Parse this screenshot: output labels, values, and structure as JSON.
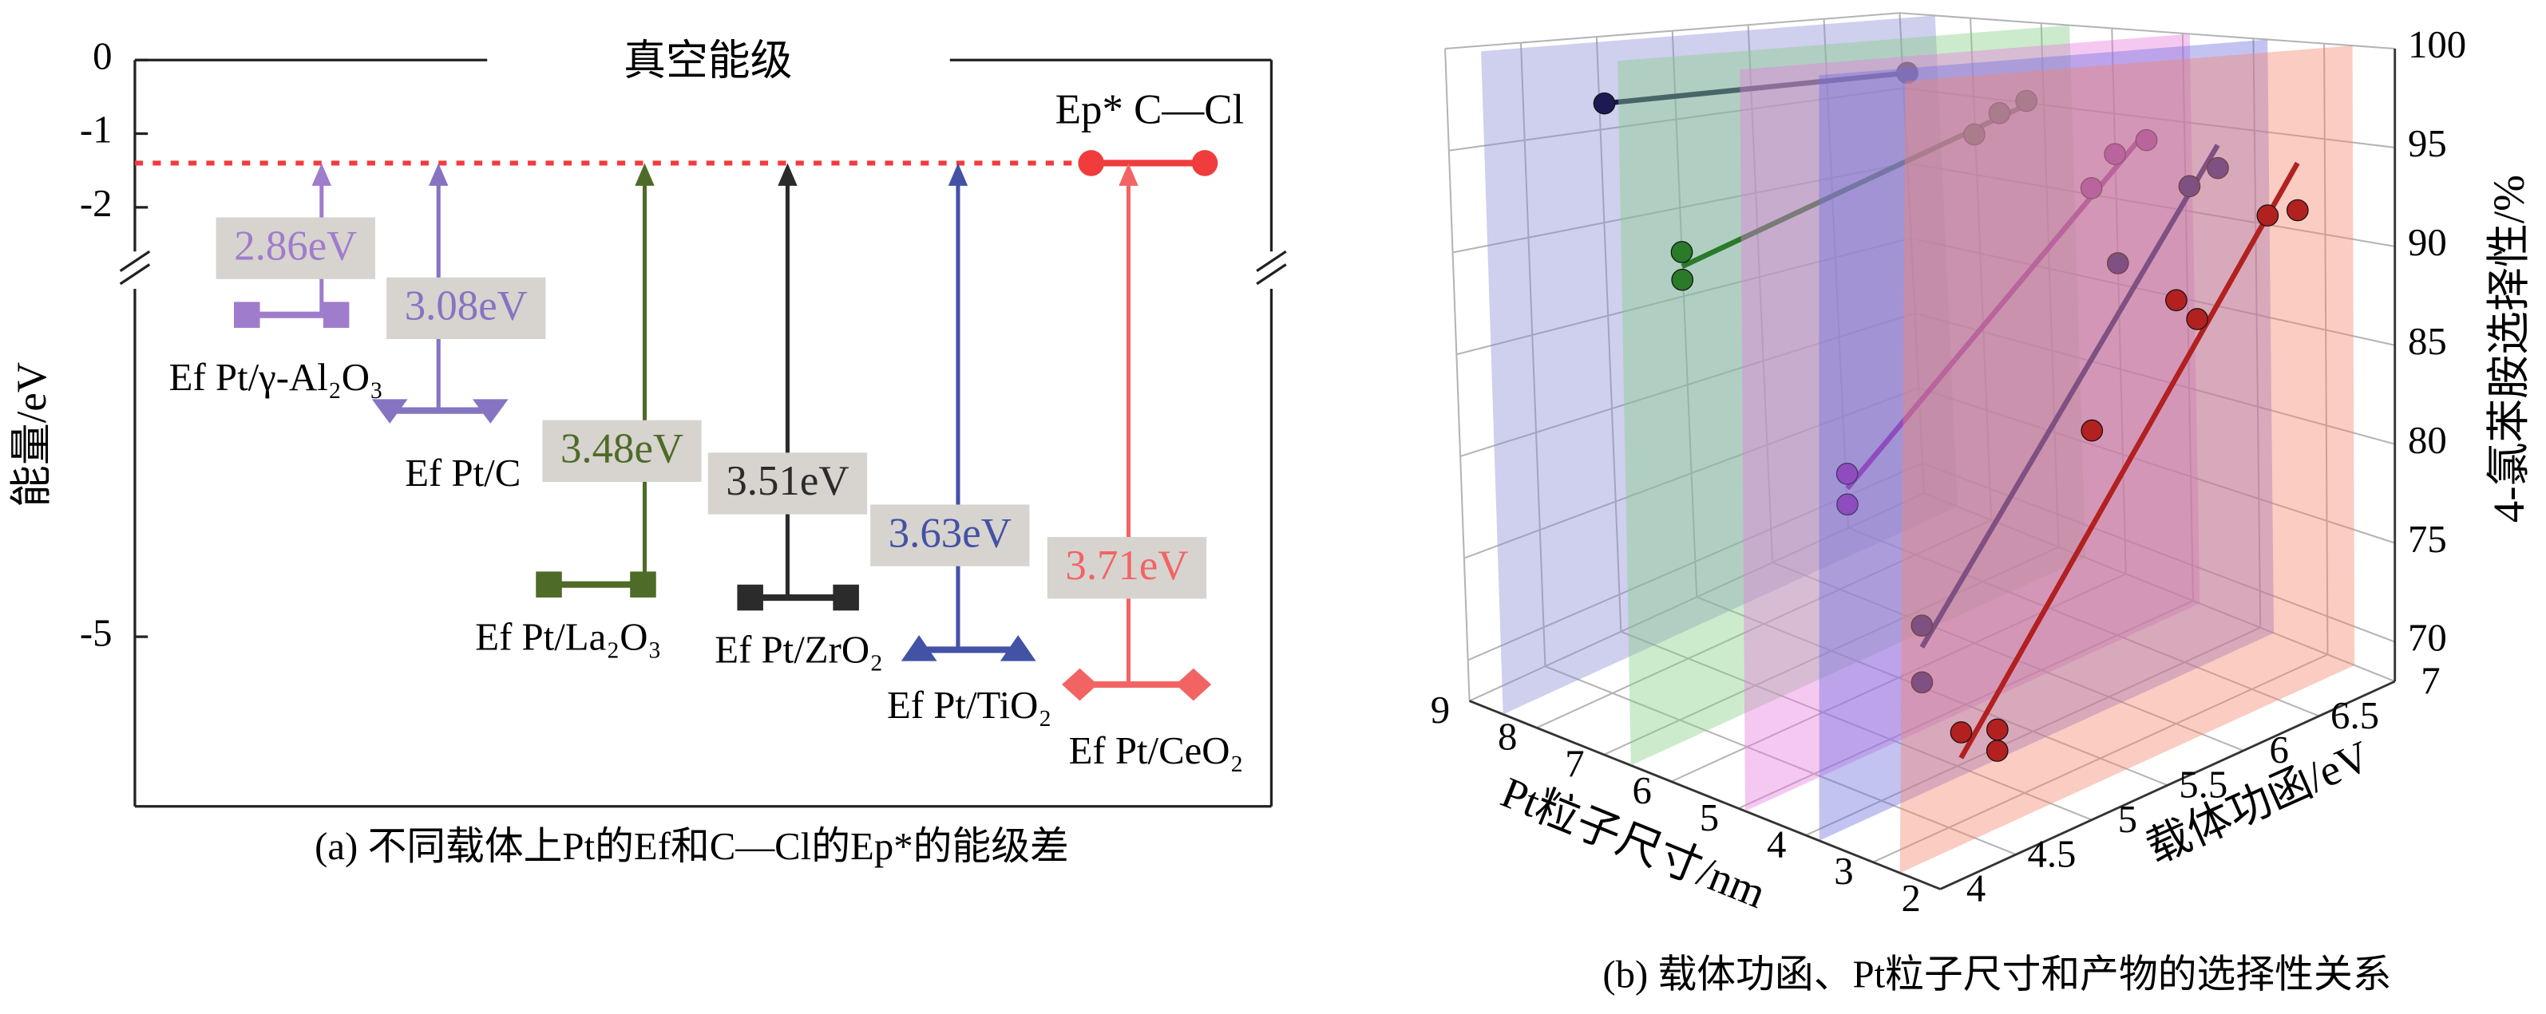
{
  "chart_data": [
    {
      "type": "energy-level",
      "ylabel": "能量/eV",
      "vacuum_label": "真空能级",
      "caption": "(a) 不同载体上Pt的Ef和C—Cl的Ep*的能级差",
      "ylim": [
        -5.39,
        0
      ],
      "ybreak": [
        -2.6,
        -4.2
      ],
      "yticks": [
        0,
        -1,
        -2,
        -5
      ],
      "ep_label": "Ep* C—Cl",
      "ep_level": -1.4,
      "ep_color": "#f03c3c",
      "categories": [
        "Ef Pt/γ-Al₂O₃",
        "Ef Pt/C",
        "Ef Pt/La₂O₃",
        "Ef Pt/ZrO₂",
        "Ef Pt/TiO₂",
        "Ef Pt/CeO₂"
      ],
      "values": [
        2.86,
        3.08,
        3.48,
        3.51,
        3.63,
        3.71
      ],
      "value_labels": [
        "2.86eV",
        "3.08eV",
        "3.48eV",
        "3.51eV",
        "3.63eV",
        "3.71eV"
      ],
      "colors": [
        "#a07ccc",
        "#8674c2",
        "#4e6b28",
        "#2b2b2b",
        "#4452a6",
        "#f26464"
      ],
      "markers": [
        "square",
        "triangle-down",
        "square",
        "square",
        "triangle-up",
        "diamond"
      ]
    },
    {
      "type": "scatter3d",
      "caption": "(b) 载体功函、Pt粒子尺寸和产物的选择性关系",
      "xlabel": "Pt粒子尺寸/nm",
      "ylabel": "载体功函/eV",
      "zlabel": "4-氯苯胺选择性/%",
      "xlim": [
        2,
        9
      ],
      "xticks": [
        9,
        8,
        7,
        6,
        5,
        4,
        3,
        2
      ],
      "ylim": [
        4,
        7
      ],
      "yticks": [
        4,
        4.5,
        5,
        5.5,
        6,
        6.5,
        7
      ],
      "zlim": [
        68,
        100
      ],
      "zticks": [
        70,
        75,
        80,
        85,
        90,
        95,
        100
      ],
      "grid": true,
      "series": [
        {
          "color": "#1c1a52",
          "plane_color": "#8c8cd6",
          "size": 8.5,
          "work_function": [
            4.8,
            6.8
          ],
          "values": [
            96.8,
            96.5
          ]
        },
        {
          "color": "#2a7a2a",
          "plane_color": "#86cf86",
          "size": 6.6,
          "work_function": [
            4.4,
            4.4,
            6.35,
            6.52,
            6.7
          ],
          "values": [
            90.8,
            89.5,
            94.3,
            95.3,
            95.8
          ]
        },
        {
          "color": "#a632a6",
          "plane_color": "#e67ce0",
          "size": 4.9,
          "work_function": [
            4.69,
            4.69,
            6.33,
            6.49,
            6.7
          ],
          "values": [
            81.2,
            79.8,
            92.3,
            93.9,
            94.4
          ]
        },
        {
          "color": "#2c2a92",
          "plane_color": "#7070e0",
          "size": 3.8,
          "work_function": [
            4.68,
            4.68,
            5.99,
            6.47,
            6.66
          ],
          "values": [
            75.4,
            72.9,
            89.6,
            92.8,
            93.5
          ]
        },
        {
          "color": "#b22020",
          "plane_color": "#f2866e",
          "size": 2.6,
          "work_function": [
            4.4,
            4.64,
            4.64,
            5.26,
            5.82,
            5.96,
            6.43,
            6.63
          ],
          "values": [
            72.7,
            72.2,
            71.3,
            83.8,
            88.8,
            87.7,
            92.0,
            92.0
          ]
        }
      ]
    }
  ]
}
